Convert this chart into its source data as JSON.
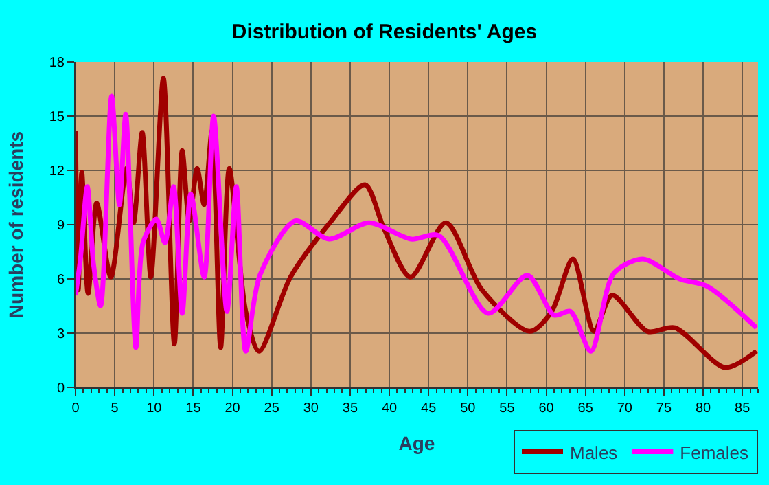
{
  "chart_data": {
    "type": "line",
    "title": "Distribution of Residents' Ages",
    "xlabel": "Age",
    "ylabel": "Number of residents",
    "xlim": [
      0,
      87
    ],
    "xticks": [
      0,
      5,
      10,
      15,
      20,
      25,
      30,
      35,
      40,
      45,
      50,
      55,
      60,
      65,
      70,
      75,
      80,
      85
    ],
    "ylim": [
      0,
      18
    ],
    "yticks": [
      0,
      3,
      6,
      9,
      12,
      15,
      18
    ],
    "grid": true,
    "legend": "bottom right",
    "marker": "none",
    "line_style": "solid",
    "series": [
      {
        "name": "Males",
        "color": "#a00000",
        "x": [
          0,
          0.35,
          0.8,
          1.6,
          2.7,
          4.5,
          6.5,
          7.4,
          8.5,
          9.6,
          11.2,
          12.6,
          13.6,
          14.5,
          15.5,
          16.4,
          17.4,
          18.5,
          19.6,
          21.7,
          23.4,
          27.4,
          32.6,
          36.9,
          39.3,
          42.7,
          47.2,
          51.8,
          57.9,
          60.7,
          63.4,
          66.1,
          68.4,
          72.9,
          76.4,
          82.8,
          86.8
        ],
        "values": [
          14.2,
          5.4,
          11.9,
          5.2,
          10.2,
          6.1,
          12.1,
          9.1,
          14.1,
          6.1,
          17.1,
          2.4,
          13.1,
          9.2,
          12.1,
          10.1,
          14.2,
          2.2,
          12.1,
          4.2,
          2.0,
          6.1,
          9.2,
          11.2,
          8.8,
          6.1,
          9.1,
          5.4,
          3.1,
          4.2,
          7.1,
          3.1,
          5.1,
          3.1,
          3.3,
          1.1,
          2.0
        ]
      },
      {
        "name": "Females",
        "color": "#ff00ff",
        "x": [
          0,
          0.6,
          1.5,
          2.3,
          3.2,
          4.6,
          5.6,
          6.4,
          7.7,
          8.6,
          10.3,
          11.4,
          12.5,
          13.6,
          14.7,
          16.4,
          17.6,
          19.3,
          20.5,
          21.7,
          23.5,
          28,
          32.3,
          37.4,
          42.8,
          46.3,
          52.6,
          57.6,
          61,
          63.1,
          65.7,
          68.6,
          72.3,
          77,
          80.5,
          86.8
        ],
        "values": [
          5.1,
          7.0,
          11.1,
          6.8,
          4.5,
          16.1,
          10.1,
          15.1,
          2.2,
          8.0,
          9.3,
          8.0,
          11.1,
          4.1,
          10.7,
          6.1,
          15.0,
          4.2,
          11.1,
          2.0,
          6.2,
          9.2,
          8.2,
          9.1,
          8.2,
          8.4,
          4.1,
          6.2,
          4.0,
          4.2,
          2.0,
          6.3,
          7.1,
          6.0,
          5.6,
          3.3
        ]
      }
    ]
  }
}
